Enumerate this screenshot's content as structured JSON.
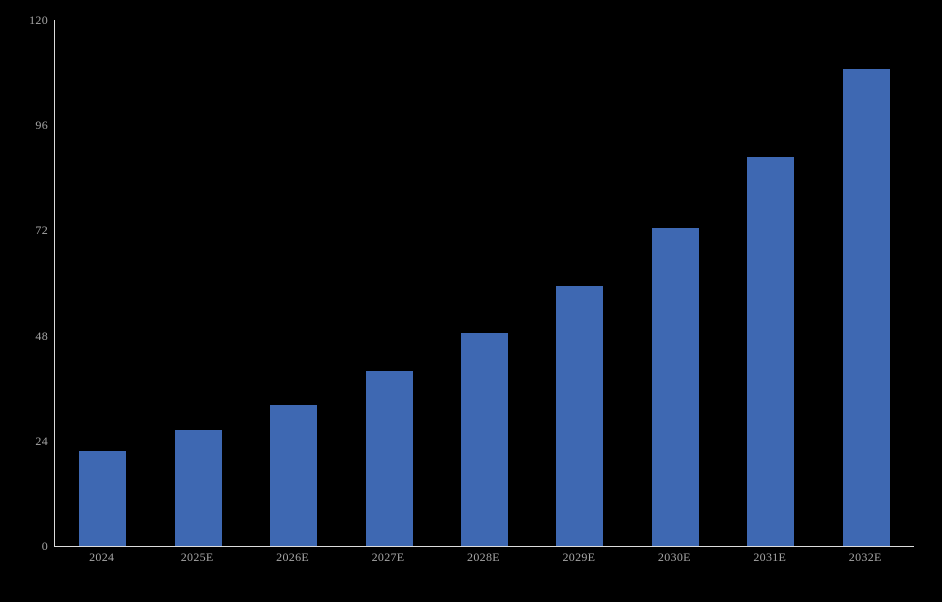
{
  "chart_data": {
    "type": "bar",
    "title": "",
    "xlabel": "",
    "ylabel": "",
    "categories": [
      "2024",
      "2025E",
      "2026E",
      "2027E",
      "2028E",
      "2029E",
      "2030E",
      "2031E",
      "2032E"
    ],
    "values": [
      21.6,
      26.5,
      32.2,
      40.0,
      48.6,
      59.4,
      72.6,
      88.8,
      108.8
    ],
    "ylim": [
      0,
      120
    ],
    "yticks": [
      0,
      24,
      48,
      72,
      96,
      120
    ],
    "grid": false,
    "legend": false,
    "colors": {
      "background": "#000000",
      "bar": "#3E68B2",
      "axis_line": "#DCDCDC",
      "tick_label": "#A6A6A6"
    }
  }
}
